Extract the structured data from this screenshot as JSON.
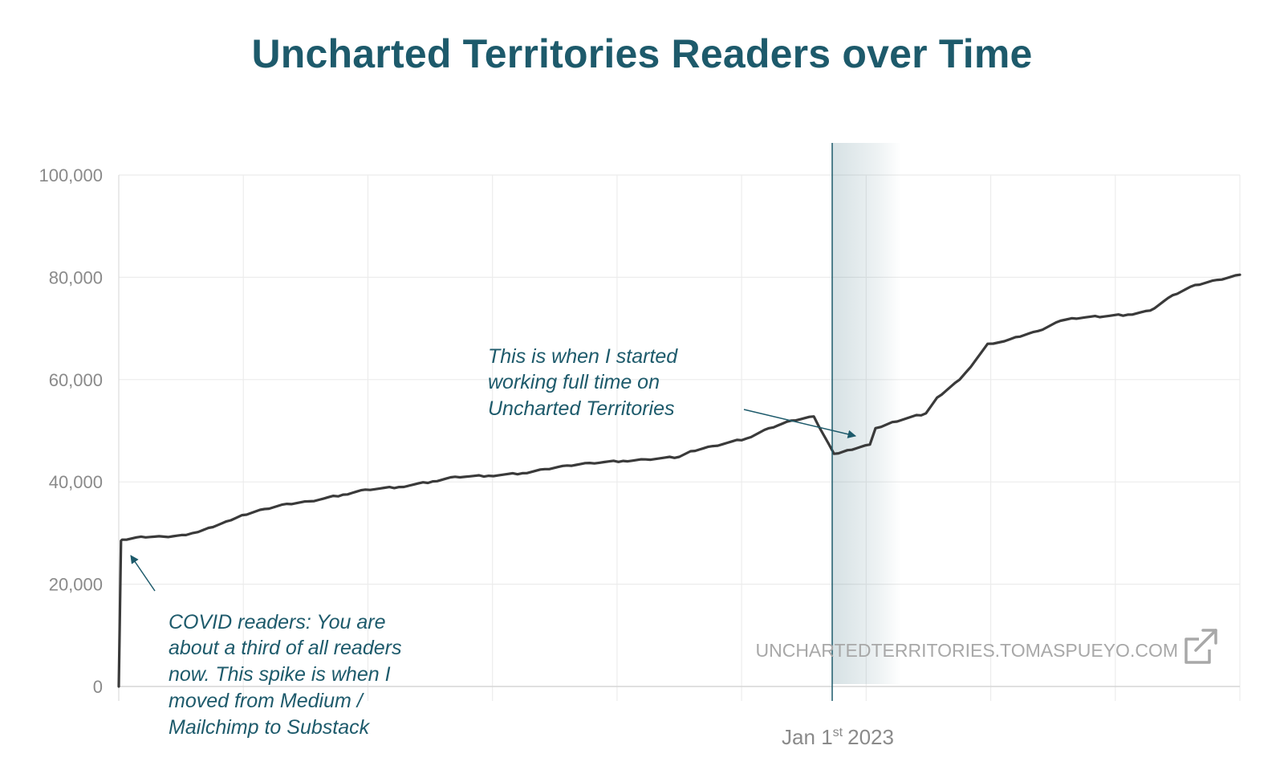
{
  "title": "Uncharted Territories Readers over Time",
  "colors": {
    "title": "#1d5a6b",
    "line": "#3a3a3a",
    "grid": "#ececec",
    "annotation": "#1d5a6b",
    "tick_label": "#8a8a8a",
    "watermark": "#a8a8a8"
  },
  "watermark": {
    "text": "UNCHARTEDTERRITORIES.TOMASPUEYO.COM",
    "icon": "external-link-icon"
  },
  "x_axis": {
    "label_main": "Jan 1",
    "label_sup": "st",
    "label_year": "2023"
  },
  "annotations": [
    {
      "id": "full-time",
      "lines": [
        "This is when I started",
        "working full time on",
        "Uncharted Territories"
      ]
    },
    {
      "id": "covid",
      "lines": [
        "COVID readers: You are",
        "about a third of all readers",
        "now. This spike is when I",
        "moved from Medium /",
        "Mailchimp to Substack"
      ]
    }
  ],
  "chart_data": {
    "type": "line",
    "title": "Uncharted Territories Readers over Time",
    "xlabel": "",
    "ylabel": "",
    "ylim": [
      0,
      100000
    ],
    "yticks": [
      0,
      20000,
      40000,
      60000,
      80000,
      100000
    ],
    "ytick_labels": [
      "0",
      "20,000",
      "40,000",
      "60,000",
      "80,000",
      "100,000"
    ],
    "x_marker": {
      "label": "Jan 1st 2023",
      "position_fraction": 0.638
    },
    "grid": true,
    "legend": "none",
    "series": [
      {
        "x": [
          0.0,
          0.002,
          0.003,
          0.02,
          0.04,
          0.06,
          0.066,
          0.08,
          0.1,
          0.11,
          0.13,
          0.15,
          0.17,
          0.2,
          0.22,
          0.25,
          0.28,
          0.3,
          0.33,
          0.36,
          0.38,
          0.4,
          0.42,
          0.45,
          0.47,
          0.5,
          0.51,
          0.53,
          0.56,
          0.58,
          0.6,
          0.62,
          0.638,
          0.65,
          0.67,
          0.675,
          0.69,
          0.72,
          0.73,
          0.75,
          0.76,
          0.77,
          0.775,
          0.79,
          0.8,
          0.82,
          0.84,
          0.85,
          0.9,
          0.92,
          0.94,
          0.96,
          0.98,
          1.0
        ],
        "y": [
          0,
          28500,
          28700,
          29300,
          29300,
          29600,
          30000,
          31000,
          32500,
          33500,
          34700,
          35700,
          36200,
          37500,
          38500,
          39000,
          40100,
          41000,
          41200,
          41700,
          42500,
          43200,
          43700,
          44100,
          44400,
          44900,
          46000,
          47000,
          48500,
          50500,
          52000,
          52800,
          45500,
          46200,
          47300,
          50500,
          51700,
          53400,
          56500,
          60000,
          62500,
          65500,
          67000,
          67500,
          68300,
          69500,
          71500,
          72000,
          72700,
          73500,
          76500,
          78500,
          79500,
          80500
        ]
      }
    ]
  }
}
